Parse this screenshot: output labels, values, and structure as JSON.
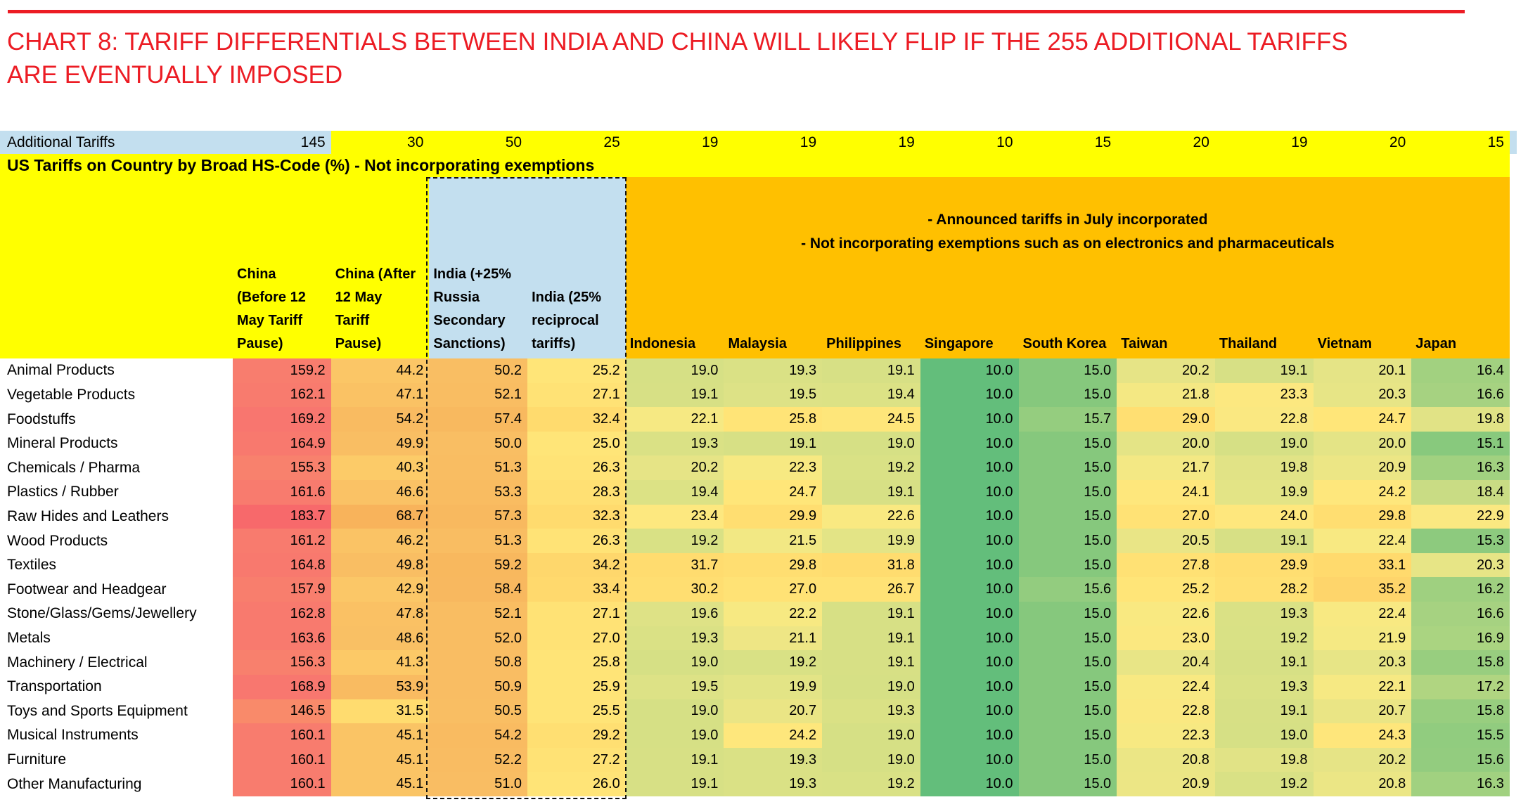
{
  "title": {
    "line1": "CHART 8: TARIFF DIFFERENTIALS BETWEEN INDIA AND CHINA WILL LIKELY FLIP IF THE 255 ADDITIONAL TARIFFS",
    "line2": "ARE EVENTUALLY IMPOSED"
  },
  "colors": {
    "accent_red": "#EC1C24",
    "yellow": "#FFFF00",
    "orange": "#FFC000",
    "light_blue": "#C3DFEF",
    "row_label_bg": "#FFFFFF",
    "text": "#000000"
  },
  "chart_data": {
    "type": "heatmap",
    "title": "CHART 8: TARIFF DIFFERENTIALS BETWEEN INDIA AND CHINA WILL LIKELY FLIP IF THE 255 ADDITIONAL TARIFFS ARE EVENTUALLY IMPOSED",
    "subtitle": "US Tariffs on Country by Broad HS-Code (%) - Not incorporating exemptions",
    "additional_tariffs": {
      "label": "Additional Tariffs",
      "values": [
        145,
        30,
        50,
        25,
        19,
        19,
        19,
        10,
        15,
        20,
        19,
        20,
        15
      ]
    },
    "notes": [
      "- Announced tariffs in July incorporated",
      "- Not incorporating exemptions such as on electronics and pharmaceuticals"
    ],
    "columns": [
      "China (Before 12 May Tariff Pause)",
      "China (After 12 May Tariff Pause)",
      "India (+25% Russia Secondary Sanctions)",
      "India (25% reciprocal tariffs)",
      "Indonesia",
      "Malaysia",
      "Philippines",
      "Singapore",
      "South Korea",
      "Taiwan",
      "Thailand",
      "Vietnam",
      "Japan"
    ],
    "column_header_display": [
      "China\n(Before 12\nMay Tariff\nPause)",
      "China (After\n12 May\nTariff\nPause)",
      "India (+25%\nRussia\nSecondary\nSanctions)",
      "India (25%\nreciprocal\ntariffs)",
      "Indonesia",
      "Malaysia",
      "Philippines",
      "Singapore",
      "South Korea",
      "Taiwan",
      "Thailand",
      "Vietnam",
      "Japan"
    ],
    "rows": [
      {
        "label": "Animal Products",
        "values": [
          159.2,
          44.2,
          50.2,
          25.2,
          19.0,
          19.3,
          19.1,
          10.0,
          15.0,
          20.2,
          19.1,
          20.1,
          16.4
        ]
      },
      {
        "label": "Vegetable Products",
        "values": [
          162.1,
          47.1,
          52.1,
          27.1,
          19.1,
          19.5,
          19.4,
          10.0,
          15.0,
          21.8,
          23.3,
          20.3,
          16.6
        ]
      },
      {
        "label": "Foodstuffs",
        "values": [
          169.2,
          54.2,
          57.4,
          32.4,
          22.1,
          25.8,
          24.5,
          10.0,
          15.7,
          29.0,
          22.8,
          24.7,
          19.8
        ]
      },
      {
        "label": "Mineral Products",
        "values": [
          164.9,
          49.9,
          50.0,
          25.0,
          19.3,
          19.1,
          19.0,
          10.0,
          15.0,
          20.0,
          19.0,
          20.0,
          15.1
        ]
      },
      {
        "label": "Chemicals / Pharma",
        "values": [
          155.3,
          40.3,
          51.3,
          26.3,
          20.2,
          22.3,
          19.2,
          10.0,
          15.0,
          21.7,
          19.8,
          20.9,
          16.3
        ]
      },
      {
        "label": "Plastics / Rubber",
        "values": [
          161.6,
          46.6,
          53.3,
          28.3,
          19.4,
          24.7,
          19.1,
          10.0,
          15.0,
          24.1,
          19.9,
          24.2,
          18.4
        ]
      },
      {
        "label": "Raw Hides and Leathers",
        "values": [
          183.7,
          68.7,
          57.3,
          32.3,
          23.4,
          29.9,
          22.6,
          10.0,
          15.0,
          27.0,
          24.0,
          29.8,
          22.9
        ]
      },
      {
        "label": "Wood Products",
        "values": [
          161.2,
          46.2,
          51.3,
          26.3,
          19.2,
          21.5,
          19.9,
          10.0,
          15.0,
          20.5,
          19.1,
          22.4,
          15.3
        ]
      },
      {
        "label": "Textiles",
        "values": [
          164.8,
          49.8,
          59.2,
          34.2,
          31.7,
          29.8,
          31.8,
          10.0,
          15.0,
          27.8,
          29.9,
          33.1,
          20.3
        ]
      },
      {
        "label": "Footwear and Headgear",
        "values": [
          157.9,
          42.9,
          58.4,
          33.4,
          30.2,
          27.0,
          26.7,
          10.0,
          15.6,
          25.2,
          28.2,
          35.2,
          16.2
        ]
      },
      {
        "label": "Stone/Glass/Gems/Jewellery",
        "values": [
          162.8,
          47.8,
          52.1,
          27.1,
          19.6,
          22.2,
          19.1,
          10.0,
          15.0,
          22.6,
          19.3,
          22.4,
          16.6
        ]
      },
      {
        "label": "Metals",
        "values": [
          163.6,
          48.6,
          52.0,
          27.0,
          19.3,
          21.1,
          19.1,
          10.0,
          15.0,
          23.0,
          19.2,
          21.9,
          16.9
        ]
      },
      {
        "label": "Machinery / Electrical",
        "values": [
          156.3,
          41.3,
          50.8,
          25.8,
          19.0,
          19.2,
          19.1,
          10.0,
          15.0,
          20.4,
          19.1,
          20.3,
          15.8
        ]
      },
      {
        "label": "Transportation",
        "values": [
          168.9,
          53.9,
          50.9,
          25.9,
          19.5,
          19.9,
          19.0,
          10.0,
          15.0,
          22.4,
          19.3,
          22.1,
          17.2
        ]
      },
      {
        "label": "Toys and Sports Equipment",
        "values": [
          146.5,
          31.5,
          50.5,
          25.5,
          19.0,
          20.7,
          19.3,
          10.0,
          15.0,
          22.8,
          19.1,
          20.7,
          15.8
        ]
      },
      {
        "label": "Musical Instruments",
        "values": [
          160.1,
          45.1,
          54.2,
          29.2,
          19.0,
          24.2,
          19.0,
          10.0,
          15.0,
          22.3,
          19.0,
          24.3,
          15.5
        ]
      },
      {
        "label": "Furniture",
        "values": [
          160.1,
          45.1,
          52.2,
          27.2,
          19.1,
          19.3,
          19.0,
          10.0,
          15.0,
          20.8,
          19.8,
          20.2,
          15.6
        ]
      },
      {
        "label": "Other Manufacturing",
        "values": [
          160.1,
          45.1,
          51.0,
          26.0,
          19.1,
          19.3,
          19.2,
          10.0,
          15.0,
          20.9,
          19.2,
          20.8,
          16.3
        ]
      }
    ],
    "color_scale": {
      "description": "red = high tariff, green = low tariff",
      "anchors": [
        [
          10,
          "#63BE7B"
        ],
        [
          15,
          "#86C87D"
        ],
        [
          16,
          "#9CCF80"
        ],
        [
          17,
          "#ACD481"
        ],
        [
          19,
          "#D6E085"
        ],
        [
          20,
          "#E4E486"
        ],
        [
          21,
          "#EDE685"
        ],
        [
          22,
          "#F6E983"
        ],
        [
          23.5,
          "#FDE87F"
        ],
        [
          25,
          "#FFE578"
        ],
        [
          27,
          "#FFE275"
        ],
        [
          30,
          "#FFDE71"
        ],
        [
          33,
          "#FFDA6D"
        ],
        [
          40,
          "#FCCB68"
        ],
        [
          50,
          "#F9BE63"
        ],
        [
          60,
          "#F8B75E"
        ],
        [
          69,
          "#F8B35B"
        ],
        [
          146,
          "#F98B6A"
        ],
        [
          160,
          "#F87C6E"
        ],
        [
          170,
          "#F8766F"
        ],
        [
          184,
          "#F7696B"
        ]
      ]
    }
  }
}
